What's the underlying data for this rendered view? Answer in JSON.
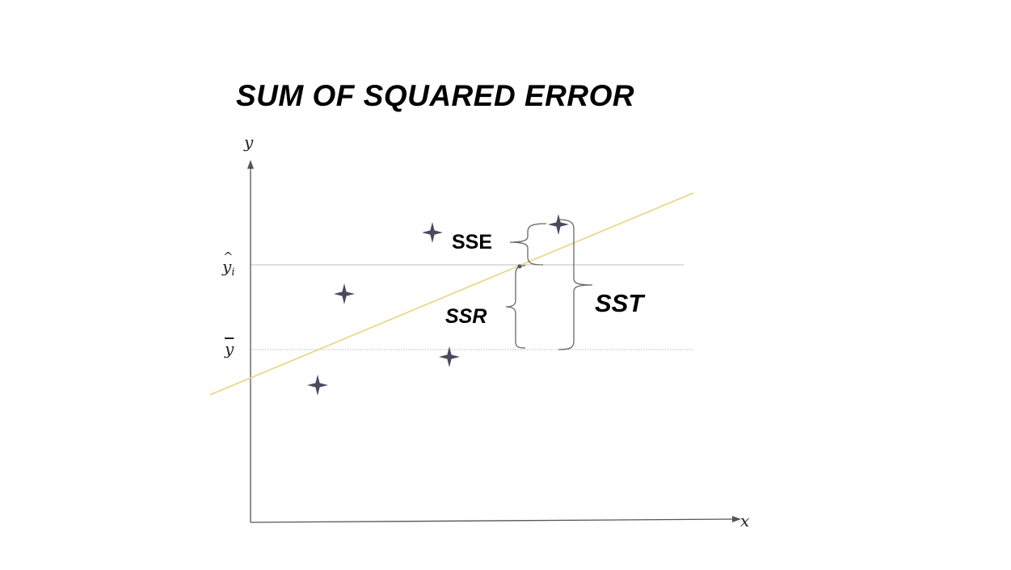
{
  "title": "SUM OF SQUARED ERROR",
  "axes": {
    "x_label": "x",
    "y_label": "y"
  },
  "levels": {
    "y_hat": {
      "symbol": "y",
      "subscript": "i"
    },
    "y_bar": {
      "symbol": "y"
    }
  },
  "braces": {
    "sse": "SSE",
    "ssr": "SSR",
    "sst": "SST"
  },
  "colors": {
    "regression_line": "#e8d27a",
    "points": "#4a4a5e",
    "guide_lines": "#bdbdbd",
    "axes": "#555555",
    "braces": "#666666"
  },
  "icons": {
    "data_point": "four-point-star-icon"
  }
}
